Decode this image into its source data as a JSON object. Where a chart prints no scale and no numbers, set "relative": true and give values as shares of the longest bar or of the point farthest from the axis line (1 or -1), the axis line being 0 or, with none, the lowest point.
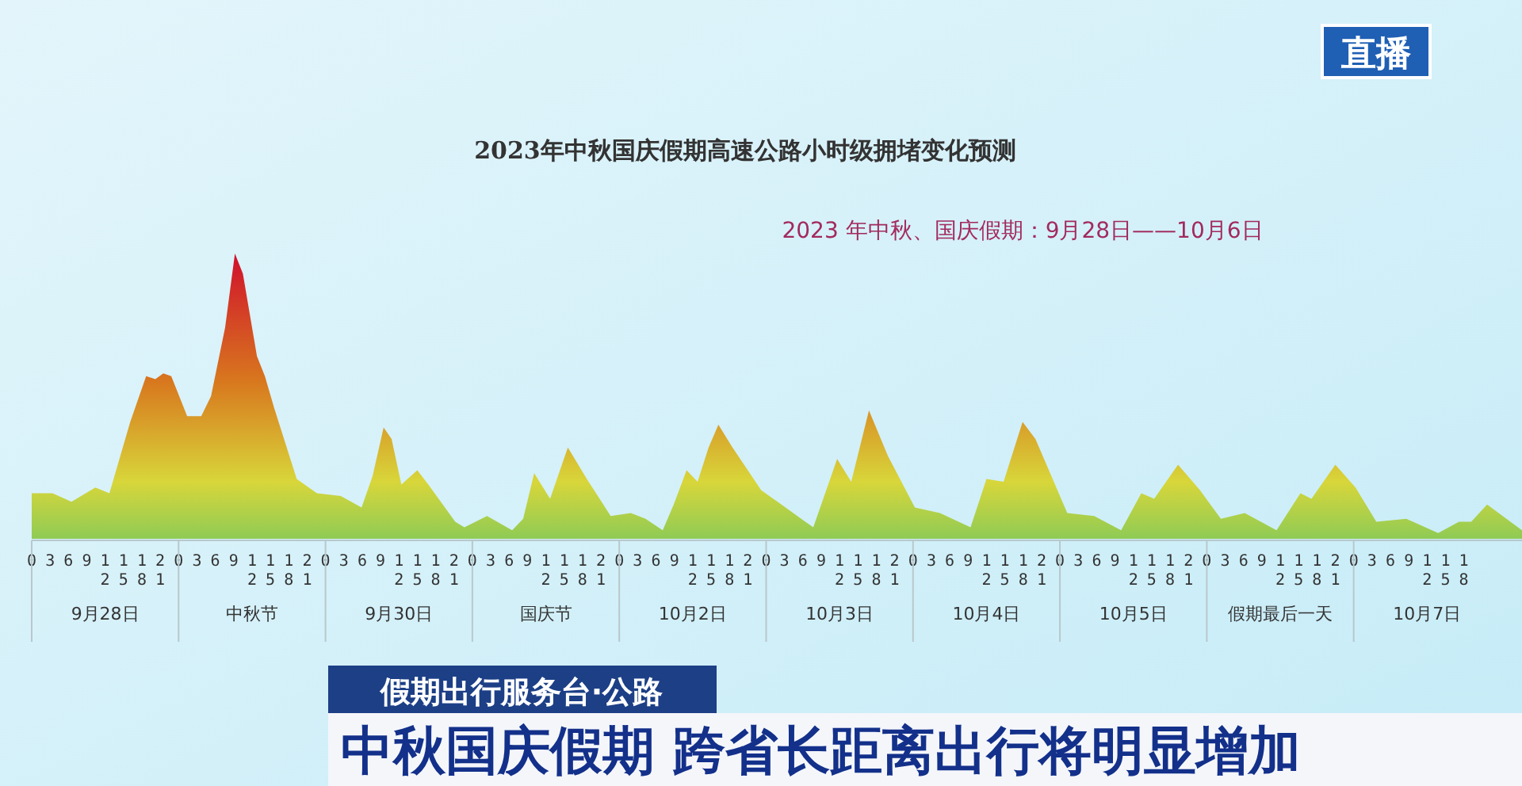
{
  "chart_data": {
    "type": "area",
    "title": "2023年中秋国庆假期高速公路小时级拥堵变化预测",
    "subtitle": "2023 年中秋、国庆假期：9月28日——10月6日",
    "relative": true,
    "x": [
      "2023-09-28T00:00",
      "2023-09-28T03:24",
      "2023-09-28T06:30",
      "2023-09-28T10:24",
      "2023-09-28T12:42",
      "2023-09-28T16:06",
      "2023-09-28T18:42",
      "2023-09-28T20:12",
      "2023-09-28T21:30",
      "2023-09-28T22:48",
      "2023-09-29T01:24",
      "2023-09-29T03:42",
      "2023-09-29T05:18",
      "2023-09-29T07:36",
      "2023-09-29T09:12",
      "2023-09-29T10:30",
      "2023-09-29T12:48",
      "2023-09-29T14:06",
      "2023-09-29T15:36",
      "2023-09-29T19:18",
      "2023-09-29T22:36",
      "2023-09-30T02:30",
      "2023-09-30T05:54",
      "2023-09-30T07:42",
      "2023-09-30T09:30",
      "2023-09-30T10:48",
      "2023-09-30T12:24",
      "2023-09-30T15:00",
      "2023-09-30T16:48",
      "2023-09-30T21:12",
      "2023-09-30T22:42",
      "2023-10-01T02:24",
      "2023-10-01T06:30",
      "2023-10-01T08:18",
      "2023-10-01T10:06",
      "2023-10-01T12:42",
      "2023-10-01T15:36",
      "2023-10-01T18:42",
      "2023-10-01T22:36",
      "2023-10-02T01:54",
      "2023-10-02T04:18",
      "2023-10-02T07:06",
      "2023-10-02T08:54",
      "2023-10-02T11:00",
      "2023-10-02T12:48",
      "2023-10-02T14:36",
      "2023-10-02T16:12",
      "2023-10-02T18:30",
      "2023-10-02T23:12",
      "2023-10-03T02:30",
      "2023-10-03T07:42",
      "2023-10-03T11:36",
      "2023-10-03T13:54",
      "2023-10-03T16:48",
      "2023-10-03T19:54",
      "2023-10-04T00:18",
      "2023-10-04T04:24",
      "2023-10-04T09:24",
      "2023-10-04T12:00",
      "2023-10-04T14:48",
      "2023-10-04T17:54",
      "2023-10-04T20:00",
      "2023-10-05T01:12",
      "2023-10-05T05:36",
      "2023-10-05T10:00",
      "2023-10-05T13:18",
      "2023-10-05T15:24",
      "2023-10-05T19:18",
      "2023-10-05T22:54",
      "2023-10-06T02:18",
      "2023-10-06T06:12",
      "2023-10-06T11:24",
      "2023-10-06T15:18",
      "2023-10-06T17:06",
      "2023-10-06T21:00",
      "2023-10-07T00:18",
      "2023-10-07T03:42",
      "2023-10-07T08:36",
      "2023-10-07T13:48",
      "2023-10-07T17:12",
      "2023-10-07T19:12",
      "2023-10-07T21:48",
      "2023-10-08T03:30"
    ],
    "series": [
      {
        "values": [
          0.16,
          0.16,
          0.13,
          0.18,
          0.16,
          0.41,
          0.57,
          0.56,
          0.58,
          0.57,
          0.43,
          0.43,
          0.5,
          0.74,
          1,
          0.93,
          0.64,
          0.57,
          0.46,
          0.21,
          0.16,
          0.15,
          0.11,
          0.22,
          0.39,
          0.35,
          0.19,
          0.24,
          0.19,
          0.06,
          0.04,
          0.08,
          0.03,
          0.07,
          0.23,
          0.14,
          0.32,
          0.21,
          0.08,
          0.09,
          0.07,
          0.03,
          0.12,
          0.24,
          0.2,
          0.32,
          0.4,
          0.32,
          0.17,
          0.12,
          0.04,
          0.28,
          0.2,
          0.45,
          0.29,
          0.11,
          0.09,
          0.04,
          0.21,
          0.2,
          0.41,
          0.35,
          0.09,
          0.08,
          0.03,
          0.16,
          0.14,
          0.26,
          0.17,
          0.07,
          0.09,
          0.03,
          0.16,
          0.14,
          0.26,
          0.18,
          0.06,
          0.07,
          0.02,
          0.06,
          0.06,
          0.12,
          0.03
        ]
      }
    ],
    "xlim": [
      "2023-09-28T00:00",
      "2023-10-08T03:30"
    ],
    "xticks": [
      {
        "value": "2023-09-28T00:00",
        "label": "0"
      },
      {
        "value": "2023-09-28T03:00",
        "label": "3"
      },
      {
        "value": "2023-09-28T06:00",
        "label": "6"
      },
      {
        "value": "2023-09-28T09:00",
        "label": "9"
      },
      {
        "value": "2023-09-28T12:00",
        "label": "12"
      },
      {
        "value": "2023-09-28T15:00",
        "label": "15"
      },
      {
        "value": "2023-09-28T18:00",
        "label": "18"
      },
      {
        "value": "2023-09-28T21:00",
        "label": "21"
      },
      {
        "value": "2023-09-29T00:00",
        "label": "0"
      },
      {
        "value": "2023-09-29T03:00",
        "label": "3"
      },
      {
        "value": "2023-09-29T06:00",
        "label": "6"
      },
      {
        "value": "2023-09-29T09:00",
        "label": "9"
      },
      {
        "value": "2023-09-29T12:00",
        "label": "12"
      },
      {
        "value": "2023-09-29T15:00",
        "label": "15"
      },
      {
        "value": "2023-09-29T18:00",
        "label": "18"
      },
      {
        "value": "2023-09-29T21:00",
        "label": "21"
      },
      {
        "value": "2023-09-30T00:00",
        "label": "0"
      },
      {
        "value": "2023-09-30T03:00",
        "label": "3"
      },
      {
        "value": "2023-09-30T06:00",
        "label": "6"
      },
      {
        "value": "2023-09-30T09:00",
        "label": "9"
      },
      {
        "value": "2023-09-30T12:00",
        "label": "12"
      },
      {
        "value": "2023-09-30T15:00",
        "label": "15"
      },
      {
        "value": "2023-09-30T18:00",
        "label": "18"
      },
      {
        "value": "2023-09-30T21:00",
        "label": "21"
      },
      {
        "value": "2023-10-01T00:00",
        "label": "0"
      },
      {
        "value": "2023-10-01T03:00",
        "label": "3"
      },
      {
        "value": "2023-10-01T06:00",
        "label": "6"
      },
      {
        "value": "2023-10-01T09:00",
        "label": "9"
      },
      {
        "value": "2023-10-01T12:00",
        "label": "12"
      },
      {
        "value": "2023-10-01T15:00",
        "label": "15"
      },
      {
        "value": "2023-10-01T18:00",
        "label": "18"
      },
      {
        "value": "2023-10-01T21:00",
        "label": "21"
      },
      {
        "value": "2023-10-02T00:00",
        "label": "0"
      },
      {
        "value": "2023-10-02T03:00",
        "label": "3"
      },
      {
        "value": "2023-10-02T06:00",
        "label": "6"
      },
      {
        "value": "2023-10-02T09:00",
        "label": "9"
      },
      {
        "value": "2023-10-02T12:00",
        "label": "12"
      },
      {
        "value": "2023-10-02T15:00",
        "label": "15"
      },
      {
        "value": "2023-10-02T18:00",
        "label": "18"
      },
      {
        "value": "2023-10-02T21:00",
        "label": "21"
      },
      {
        "value": "2023-10-03T00:00",
        "label": "0"
      },
      {
        "value": "2023-10-03T03:00",
        "label": "3"
      },
      {
        "value": "2023-10-03T06:00",
        "label": "6"
      },
      {
        "value": "2023-10-03T09:00",
        "label": "9"
      },
      {
        "value": "2023-10-03T12:00",
        "label": "12"
      },
      {
        "value": "2023-10-03T15:00",
        "label": "15"
      },
      {
        "value": "2023-10-03T18:00",
        "label": "18"
      },
      {
        "value": "2023-10-03T21:00",
        "label": "21"
      },
      {
        "value": "2023-10-04T00:00",
        "label": "0"
      },
      {
        "value": "2023-10-04T03:00",
        "label": "3"
      },
      {
        "value": "2023-10-04T06:00",
        "label": "6"
      },
      {
        "value": "2023-10-04T09:00",
        "label": "9"
      },
      {
        "value": "2023-10-04T12:00",
        "label": "12"
      },
      {
        "value": "2023-10-04T15:00",
        "label": "15"
      },
      {
        "value": "2023-10-04T18:00",
        "label": "18"
      },
      {
        "value": "2023-10-04T21:00",
        "label": "21"
      },
      {
        "value": "2023-10-05T00:00",
        "label": "0"
      },
      {
        "value": "2023-10-05T03:00",
        "label": "3"
      },
      {
        "value": "2023-10-05T06:00",
        "label": "6"
      },
      {
        "value": "2023-10-05T09:00",
        "label": "9"
      },
      {
        "value": "2023-10-05T12:00",
        "label": "12"
      },
      {
        "value": "2023-10-05T15:00",
        "label": "15"
      },
      {
        "value": "2023-10-05T18:00",
        "label": "18"
      },
      {
        "value": "2023-10-05T21:00",
        "label": "21"
      },
      {
        "value": "2023-10-06T00:00",
        "label": "0"
      },
      {
        "value": "2023-10-06T03:00",
        "label": "3"
      },
      {
        "value": "2023-10-06T06:00",
        "label": "6"
      },
      {
        "value": "2023-10-06T09:00",
        "label": "9"
      },
      {
        "value": "2023-10-06T12:00",
        "label": "12"
      },
      {
        "value": "2023-10-06T15:00",
        "label": "15"
      },
      {
        "value": "2023-10-06T18:00",
        "label": "18"
      },
      {
        "value": "2023-10-06T21:00",
        "label": "21"
      },
      {
        "value": "2023-10-07T00:00",
        "label": "0"
      },
      {
        "value": "2023-10-07T03:00",
        "label": "3"
      },
      {
        "value": "2023-10-07T06:00",
        "label": "6"
      },
      {
        "value": "2023-10-07T09:00",
        "label": "9"
      },
      {
        "value": "2023-10-07T12:00",
        "label": "12"
      },
      {
        "value": "2023-10-07T15:00",
        "label": "15"
      },
      {
        "value": "2023-10-07T18:00",
        "label": "18"
      }
    ],
    "annotations": [
      "9月28日",
      "中秋节",
      "9月30日",
      "国庆节",
      "10月2日",
      "10月3日",
      "10月4日",
      "10月5日",
      "假期最后一天",
      "10月7日",
      "直播",
      "假期出行服务台·公路",
      "中秋国庆假期 跨省长距离出行将明显增加"
    ]
  }
}
